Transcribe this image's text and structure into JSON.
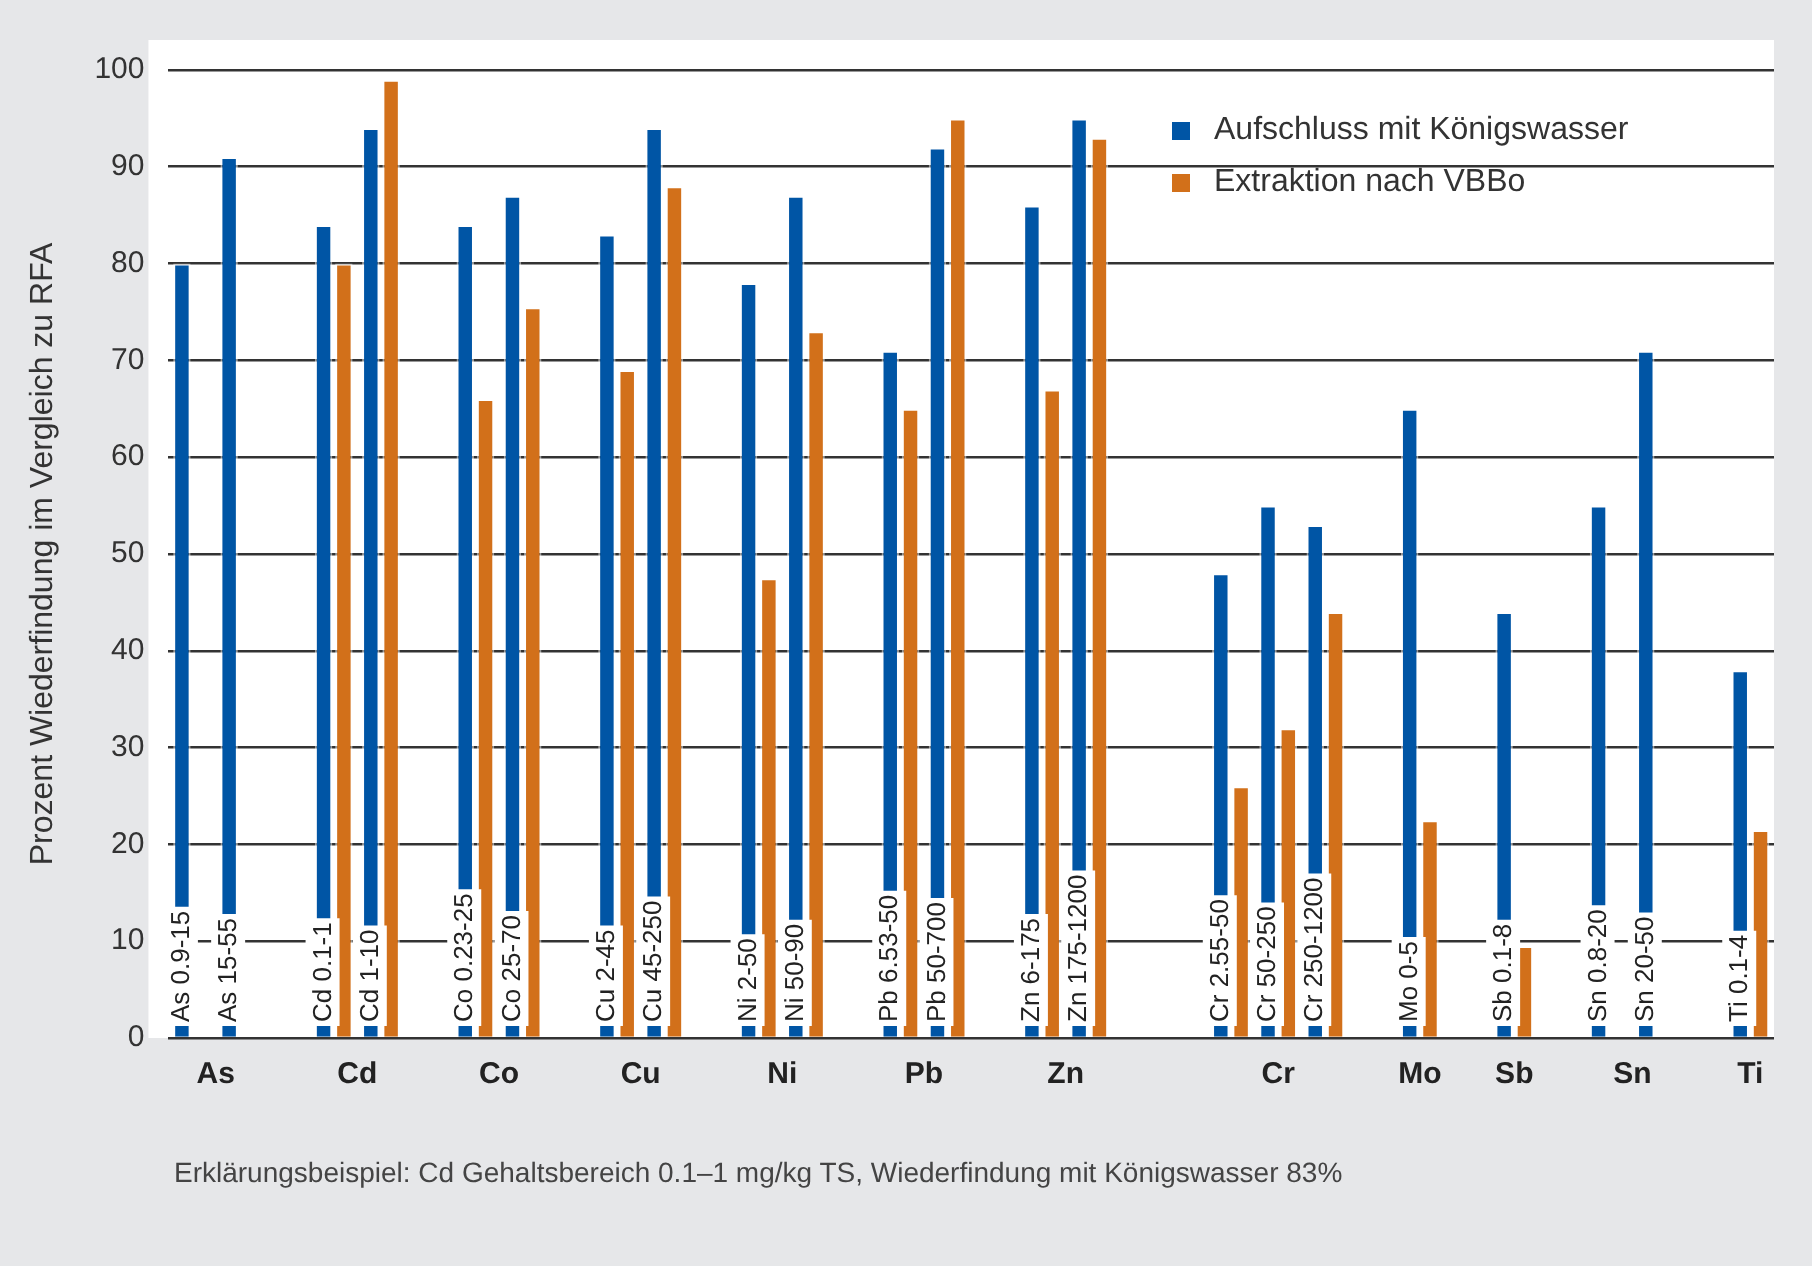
{
  "chart_data": {
    "type": "bar",
    "ylabel": "Prozent Wiederfindung im Vergleich zu RFA",
    "categories": [
      "As 0.9-15",
      "As 15-55",
      null,
      "Cd 0.1-1",
      "Cd 1-10",
      null,
      "Co 0.23-25",
      "Co 25-70",
      null,
      "Cu 2-45",
      "Cu 45-250",
      null,
      "Ni 2-50",
      "Ni 50-90",
      null,
      "Pb 6.53-50",
      "Pb 50-700",
      null,
      "Zn 6-175",
      "Zn 175-1200",
      null,
      null,
      "Cr 2.55-50",
      "Cr 50-250",
      "Cr 250-1200",
      null,
      "Mo 0-5",
      null,
      "Sb 0.1-8",
      null,
      "Sn 0.8-20",
      "Sn 20-50",
      null,
      "Ti 0.1-4"
    ],
    "series": [
      {
        "name": "Aufschluss mit Königswasser",
        "color": "#0055a5",
        "values": [
          80,
          91,
          null,
          84,
          94,
          null,
          84,
          87,
          null,
          83,
          94,
          null,
          78,
          87,
          null,
          71,
          92,
          null,
          86,
          95,
          null,
          null,
          48,
          55,
          53,
          null,
          65,
          null,
          44,
          null,
          55,
          71,
          null,
          38
        ]
      },
      {
        "name": "Extraktion nach VBBo",
        "color": "#d2701a",
        "values": [
          null,
          null,
          null,
          80,
          99,
          null,
          66,
          75.5,
          null,
          69,
          88,
          null,
          47.5,
          73,
          null,
          65,
          95,
          null,
          67,
          93,
          null,
          null,
          26,
          32,
          44,
          null,
          22.5,
          null,
          9.5,
          null,
          null,
          null,
          null,
          21.5
        ]
      }
    ],
    "ylim": [
      0,
      100
    ],
    "yticks": [
      0,
      10,
      20,
      30,
      40,
      50,
      60,
      70,
      80,
      90,
      100
    ],
    "grid": "y",
    "legend": "top right",
    "annotations": [
      "As",
      "Cd",
      "Co",
      "Cu",
      "Ni",
      "Pb",
      "Zn",
      "Cr",
      "Mo",
      "Sb",
      "Sn",
      "Ti",
      "Erklärungsbeispiel: Cd Gehaltsbereich 0.1–1 mg/kg TS, Wiederfindung mit Königswasser 83%"
    ]
  }
}
